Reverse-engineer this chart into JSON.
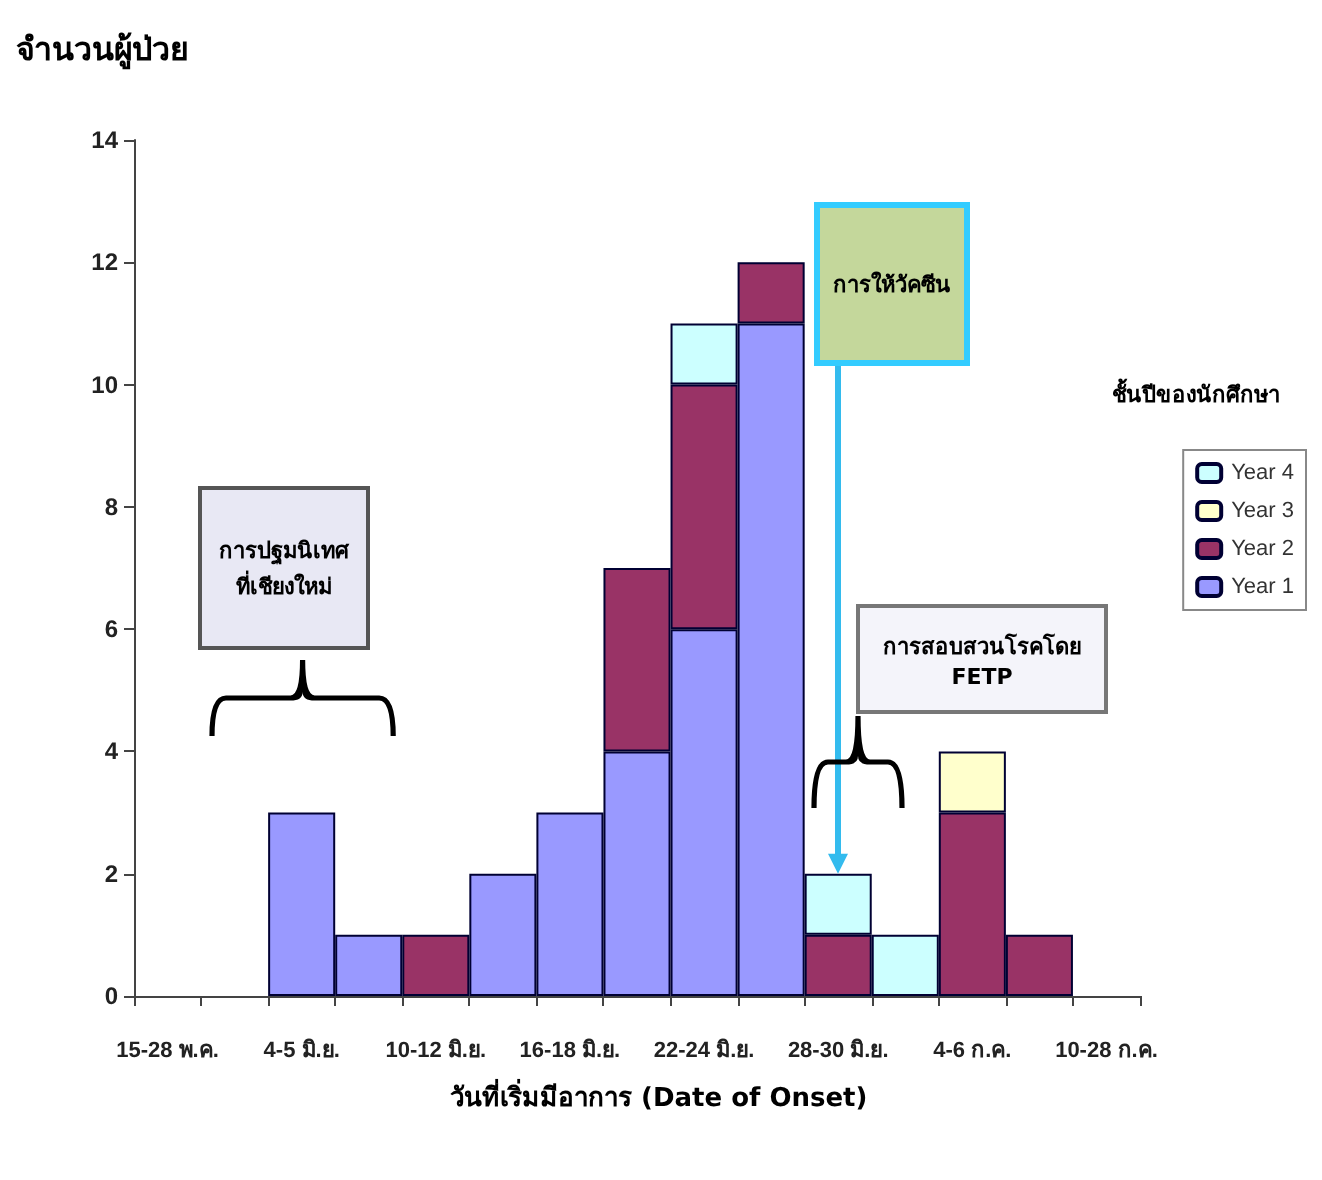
{
  "chart_data": {
    "type": "bar",
    "stacked": true,
    "ylabel": "จำนวนผู้ป่วย",
    "xlabel": "วันที่เริ่มมีอาการ (Date of Onset)",
    "legend_title": "ชั้นปีของนักศึกษา",
    "categories": [
      "15-28 พ.ค.",
      null,
      "4-5 มิ.ย.",
      null,
      "10-12 มิ.ย.",
      null,
      "16-18 มิ.ย.",
      null,
      "22-24 มิ.ย.",
      null,
      "28-30 มิ.ย.",
      null,
      "4-6 ก.ค.",
      null,
      "10-28 ก.ค."
    ],
    "series": [
      {
        "name": "Year 1",
        "color": "#9999ff",
        "values": [
          0,
          0,
          3,
          1,
          0,
          2,
          3,
          4,
          6,
          11,
          0,
          0,
          0,
          0,
          0
        ]
      },
      {
        "name": "Year 2",
        "color": "#993366",
        "values": [
          0,
          0,
          0,
          0,
          1,
          0,
          0,
          3,
          4,
          1,
          1,
          0,
          3,
          1,
          0
        ]
      },
      {
        "name": "Year 3",
        "color": "#ffffcc",
        "values": [
          0,
          0,
          0,
          0,
          0,
          0,
          0,
          0,
          0,
          0,
          0,
          0,
          1,
          0,
          0
        ]
      },
      {
        "name": "Year 4",
        "color": "#ccffff",
        "values": [
          0,
          0,
          0,
          0,
          0,
          0,
          0,
          0,
          1,
          0,
          1,
          1,
          0,
          0,
          0
        ]
      }
    ],
    "ylim": [
      0,
      14
    ],
    "yticks": [
      0,
      2,
      4,
      6,
      8,
      10,
      12,
      14
    ],
    "grid": false,
    "legend": "right",
    "annotations": [
      "การปฐมนิเทศ\nที่เชียงใหม่",
      "การให้วัคซีน",
      "การสอบสวนโรคโดย FETP"
    ]
  }
}
